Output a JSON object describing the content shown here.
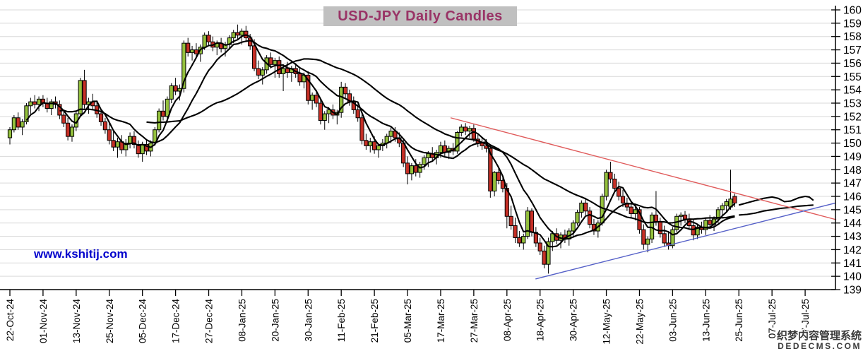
{
  "header": {
    "title": "USD-JPY Daily Candles"
  },
  "watermarks": {
    "site": "www.kshitij.com",
    "cms_line1": "织梦内容管理系统",
    "cms_line2": "DEDECMS.COM"
  },
  "colors": {
    "up_candle": "#94c13d",
    "down_candle": "#c62f26",
    "candle_border": "#000000",
    "ma_line": "#000000",
    "resistance_trendline": "#e05b5b",
    "support_trendline": "#5560c8",
    "gridline": "#d9d9d9",
    "axis": "#000000",
    "title_bg": "#c0c0c0",
    "title_text": "#993366",
    "site_watermark": "#0000cc"
  },
  "chart_data": {
    "type": "candlestick",
    "title": "USD-JPY Daily Candles",
    "grid": "horizontal",
    "ylim": [
      139,
      160
    ],
    "y_tick_step": 1,
    "y_tick_labels": [
      "160",
      "159",
      "158",
      "157",
      "156",
      "155",
      "154",
      "153",
      "152",
      "151",
      "150",
      "149",
      "148",
      "147",
      "146",
      "145",
      "144",
      "143",
      "142",
      "141",
      "140",
      "139"
    ],
    "x_tick_interval_candles": 8,
    "x_tick_labels": [
      "22-Oct-24",
      "01-Nov-24",
      "13-Nov-24",
      "25-Nov-24",
      "05-Dec-24",
      "17-Dec-24",
      "27-Dec-24",
      "08-Jan-25",
      "20-Jan-25",
      "30-Jan-25",
      "11-Feb-25",
      "21-Feb-25",
      "05-Mar-25",
      "17-Mar-25",
      "27-Mar-25",
      "08-Apr-25",
      "18-Apr-25",
      "30-Apr-25",
      "12-May-25",
      "22-May-25",
      "03-Jun-25",
      "13-Jun-25",
      "25-Jun-25",
      "07-Jul-25",
      "17-Jul-25"
    ],
    "candles_ohlc": [
      [
        150.4,
        151.2,
        149.9,
        151.0
      ],
      [
        151.0,
        152.1,
        150.8,
        151.9
      ],
      [
        151.9,
        152.3,
        151.0,
        151.2
      ],
      [
        151.2,
        151.8,
        150.6,
        151.6
      ],
      [
        151.6,
        153.0,
        151.4,
        152.8
      ],
      [
        152.8,
        153.4,
        152.2,
        153.1
      ],
      [
        153.1,
        153.6,
        152.6,
        152.9
      ],
      [
        152.9,
        153.5,
        152.4,
        153.3
      ],
      [
        153.3,
        153.6,
        152.7,
        153.0
      ],
      [
        153.0,
        153.4,
        152.3,
        152.6
      ],
      [
        152.6,
        153.3,
        152.1,
        153.1
      ],
      [
        153.1,
        153.5,
        152.6,
        152.9
      ],
      [
        152.9,
        153.2,
        151.8,
        152.1
      ],
      [
        152.1,
        152.4,
        151.2,
        151.5
      ],
      [
        151.5,
        151.9,
        150.2,
        150.5
      ],
      [
        150.5,
        151.4,
        150.1,
        151.2
      ],
      [
        151.2,
        152.4,
        150.9,
        152.2
      ],
      [
        152.2,
        154.9,
        152.0,
        154.7
      ],
      [
        154.7,
        155.5,
        152.6,
        152.9
      ],
      [
        152.9,
        153.4,
        152.2,
        153.1
      ],
      [
        153.1,
        153.7,
        152.5,
        152.8
      ],
      [
        152.8,
        153.2,
        151.9,
        152.2
      ],
      [
        152.2,
        152.6,
        151.3,
        151.6
      ],
      [
        151.6,
        151.9,
        150.7,
        151.0
      ],
      [
        151.0,
        151.5,
        149.9,
        150.2
      ],
      [
        150.2,
        150.9,
        149.4,
        149.7
      ],
      [
        149.7,
        150.4,
        148.9,
        150.1
      ],
      [
        150.1,
        150.6,
        149.2,
        149.5
      ],
      [
        149.5,
        150.3,
        149.0,
        150.0
      ],
      [
        150.0,
        150.8,
        149.6,
        150.5
      ],
      [
        150.5,
        150.9,
        149.6,
        149.9
      ],
      [
        149.9,
        150.2,
        148.9,
        149.2
      ],
      [
        149.2,
        150.1,
        148.6,
        149.9
      ],
      [
        149.9,
        150.3,
        149.1,
        149.4
      ],
      [
        149.4,
        150.2,
        149.0,
        150.0
      ],
      [
        150.0,
        151.2,
        149.8,
        151.0
      ],
      [
        151.0,
        152.6,
        150.8,
        152.4
      ],
      [
        152.4,
        153.2,
        151.7,
        152.0
      ],
      [
        152.0,
        153.5,
        151.8,
        153.3
      ],
      [
        153.3,
        154.5,
        153.0,
        154.3
      ],
      [
        154.3,
        154.9,
        153.6,
        153.9
      ],
      [
        153.9,
        154.4,
        153.2,
        154.1
      ],
      [
        154.1,
        157.7,
        153.8,
        157.5
      ],
      [
        157.5,
        157.9,
        156.5,
        156.8
      ],
      [
        156.8,
        157.3,
        156.2,
        157.0
      ],
      [
        157.0,
        157.5,
        156.4,
        156.7
      ],
      [
        156.7,
        157.4,
        156.1,
        157.2
      ],
      [
        157.2,
        158.3,
        157.0,
        158.1
      ],
      [
        158.1,
        158.4,
        157.3,
        157.6
      ],
      [
        157.6,
        158.0,
        156.9,
        157.2
      ],
      [
        157.2,
        157.7,
        156.6,
        157.5
      ],
      [
        157.5,
        157.9,
        156.8,
        157.1
      ],
      [
        157.1,
        157.6,
        156.5,
        157.4
      ],
      [
        157.4,
        158.1,
        157.0,
        157.9
      ],
      [
        157.9,
        158.5,
        157.5,
        158.3
      ],
      [
        158.3,
        158.9,
        157.8,
        158.1
      ],
      [
        158.1,
        158.6,
        157.4,
        158.4
      ],
      [
        158.4,
        158.8,
        157.6,
        157.9
      ],
      [
        157.9,
        158.2,
        157.0,
        157.3
      ],
      [
        157.3,
        157.8,
        155.4,
        155.6
      ],
      [
        155.6,
        156.2,
        154.8,
        155.1
      ],
      [
        155.1,
        155.7,
        154.4,
        155.5
      ],
      [
        155.5,
        156.6,
        155.2,
        156.4
      ],
      [
        156.4,
        156.8,
        155.6,
        155.9
      ],
      [
        155.9,
        156.4,
        154.9,
        156.2
      ],
      [
        156.2,
        156.5,
        154.9,
        155.2
      ],
      [
        155.2,
        155.9,
        153.9,
        155.6
      ],
      [
        155.6,
        156.1,
        154.9,
        155.3
      ],
      [
        155.3,
        155.8,
        154.6,
        155.6
      ],
      [
        155.6,
        156.0,
        154.9,
        155.2
      ],
      [
        155.2,
        155.6,
        154.3,
        154.6
      ],
      [
        154.6,
        155.3,
        154.1,
        155.1
      ],
      [
        155.1,
        155.4,
        152.9,
        153.2
      ],
      [
        153.2,
        153.8,
        152.5,
        153.6
      ],
      [
        153.6,
        154.0,
        152.7,
        153.0
      ],
      [
        153.0,
        153.3,
        151.4,
        151.7
      ],
      [
        151.7,
        152.4,
        151.0,
        152.2
      ],
      [
        152.2,
        152.7,
        151.5,
        152.5
      ],
      [
        152.5,
        152.9,
        151.8,
        152.1
      ],
      [
        152.1,
        152.5,
        151.4,
        152.3
      ],
      [
        152.3,
        154.6,
        151.9,
        154.2
      ],
      [
        154.2,
        154.5,
        153.4,
        153.7
      ],
      [
        153.7,
        154.0,
        152.8,
        153.1
      ],
      [
        153.1,
        153.5,
        152.2,
        152.5
      ],
      [
        152.5,
        152.9,
        151.6,
        151.9
      ],
      [
        151.9,
        152.2,
        149.9,
        150.2
      ],
      [
        150.2,
        150.7,
        149.5,
        149.8
      ],
      [
        149.8,
        150.4,
        149.3,
        150.1
      ],
      [
        150.1,
        150.5,
        149.2,
        149.5
      ],
      [
        149.5,
        150.0,
        148.9,
        149.8
      ],
      [
        149.8,
        150.3,
        149.4,
        150.0
      ],
      [
        150.0,
        150.7,
        149.6,
        150.5
      ],
      [
        150.5,
        151.2,
        150.0,
        150.9
      ],
      [
        150.9,
        151.2,
        150.1,
        150.4
      ],
      [
        150.4,
        150.8,
        149.7,
        150.0
      ],
      [
        150.0,
        150.3,
        148.2,
        148.5
      ],
      [
        148.5,
        149.0,
        146.9,
        147.7
      ],
      [
        147.7,
        148.5,
        147.2,
        148.3
      ],
      [
        148.3,
        148.8,
        147.5,
        147.8
      ],
      [
        147.8,
        148.6,
        147.4,
        148.4
      ],
      [
        148.4,
        149.1,
        148.0,
        148.9
      ],
      [
        148.9,
        149.4,
        148.2,
        149.2
      ],
      [
        149.2,
        149.7,
        148.6,
        148.9
      ],
      [
        148.9,
        149.5,
        148.4,
        149.3
      ],
      [
        149.3,
        150.1,
        148.9,
        149.8
      ],
      [
        149.8,
        150.2,
        149.0,
        149.3
      ],
      [
        149.3,
        149.8,
        148.8,
        149.6
      ],
      [
        149.6,
        150.0,
        149.1,
        149.4
      ],
      [
        149.4,
        150.9,
        149.2,
        150.8
      ],
      [
        150.8,
        151.4,
        150.5,
        151.2
      ],
      [
        151.2,
        151.5,
        150.6,
        150.9
      ],
      [
        150.9,
        151.3,
        150.4,
        151.1
      ],
      [
        151.1,
        151.4,
        150.1,
        150.3
      ],
      [
        150.3,
        150.7,
        149.7,
        150.0
      ],
      [
        150.0,
        150.4,
        149.5,
        149.8
      ],
      [
        149.8,
        150.3,
        149.3,
        149.6
      ],
      [
        149.6,
        149.9,
        145.9,
        146.4
      ],
      [
        146.4,
        147.9,
        146.0,
        147.8
      ],
      [
        147.8,
        148.2,
        146.9,
        147.2
      ],
      [
        147.2,
        147.6,
        146.3,
        146.6
      ],
      [
        146.6,
        147.0,
        143.6,
        144.5
      ],
      [
        144.5,
        145.3,
        143.5,
        143.8
      ],
      [
        143.8,
        144.4,
        142.5,
        142.9
      ],
      [
        142.9,
        143.4,
        142.2,
        142.5
      ],
      [
        142.5,
        143.2,
        142.0,
        143.0
      ],
      [
        143.0,
        145.2,
        142.8,
        144.9
      ],
      [
        144.9,
        145.1,
        143.0,
        143.3
      ],
      [
        143.3,
        143.7,
        142.2,
        142.5
      ],
      [
        142.5,
        142.9,
        141.6,
        141.9
      ],
      [
        141.9,
        142.3,
        140.6,
        140.9
      ],
      [
        140.9,
        142.9,
        140.2,
        142.6
      ],
      [
        142.6,
        143.4,
        141.9,
        143.2
      ],
      [
        143.2,
        143.6,
        142.4,
        142.7
      ],
      [
        142.7,
        143.3,
        142.1,
        143.1
      ],
      [
        143.1,
        143.5,
        142.5,
        142.8
      ],
      [
        142.8,
        143.6,
        142.3,
        143.4
      ],
      [
        143.4,
        144.2,
        143.0,
        144.0
      ],
      [
        144.0,
        145.0,
        143.8,
        144.8
      ],
      [
        144.8,
        145.7,
        144.4,
        145.5
      ],
      [
        145.5,
        145.9,
        144.6,
        144.9
      ],
      [
        144.9,
        145.2,
        143.6,
        143.9
      ],
      [
        143.9,
        144.3,
        143.1,
        143.4
      ],
      [
        143.4,
        144.2,
        142.9,
        144.0
      ],
      [
        144.0,
        146.2,
        143.8,
        146.0
      ],
      [
        146.0,
        148.0,
        145.7,
        147.8
      ],
      [
        147.8,
        148.6,
        147.0,
        147.3
      ],
      [
        147.3,
        147.7,
        146.3,
        146.6
      ],
      [
        146.6,
        147.1,
        145.7,
        146.0
      ],
      [
        146.0,
        146.5,
        145.2,
        145.5
      ],
      [
        145.5,
        145.9,
        144.9,
        145.2
      ],
      [
        145.2,
        145.6,
        144.4,
        144.7
      ],
      [
        144.7,
        145.3,
        144.2,
        145.0
      ],
      [
        145.0,
        145.2,
        143.2,
        143.5
      ],
      [
        143.5,
        143.9,
        142.0,
        142.4
      ],
      [
        142.4,
        143.0,
        141.8,
        142.8
      ],
      [
        142.8,
        144.8,
        142.5,
        144.6
      ],
      [
        144.6,
        146.4,
        143.8,
        144.1
      ],
      [
        144.1,
        144.4,
        142.9,
        143.2
      ],
      [
        143.2,
        143.8,
        142.2,
        142.5
      ],
      [
        142.5,
        143.4,
        142.0,
        142.3
      ],
      [
        142.3,
        143.7,
        142.1,
        143.5
      ],
      [
        143.5,
        144.7,
        143.3,
        144.5
      ],
      [
        144.5,
        144.8,
        143.8,
        144.6
      ],
      [
        144.6,
        144.9,
        144.0,
        144.3
      ],
      [
        144.3,
        144.7,
        143.5,
        143.8
      ],
      [
        143.8,
        144.3,
        142.7,
        143.1
      ],
      [
        143.1,
        143.9,
        142.8,
        143.7
      ],
      [
        143.7,
        144.1,
        143.2,
        143.5
      ],
      [
        143.5,
        144.4,
        143.1,
        144.2
      ],
      [
        144.2,
        144.6,
        143.6,
        143.9
      ],
      [
        143.9,
        144.5,
        143.4,
        144.3
      ],
      [
        144.3,
        145.2,
        144.0,
        145.0
      ],
      [
        145.0,
        145.5,
        144.6,
        145.3
      ],
      [
        145.3,
        145.8,
        144.9,
        145.6
      ],
      [
        145.2,
        148.0,
        145.0,
        145.8
      ],
      [
        146.0,
        146.2,
        145.2,
        145.5
      ]
    ],
    "moving_average_windows": [
      5,
      13,
      34
    ],
    "ma_projections": [
      [
        [
          176,
          145.35
        ],
        [
          179,
          145.6
        ],
        [
          182,
          145.85
        ],
        [
          184,
          145.95
        ],
        [
          185.5,
          145.85
        ],
        [
          187,
          145.6
        ],
        [
          188.5,
          145.65
        ],
        [
          190.5,
          145.9
        ],
        [
          192,
          146.0
        ],
        [
          193,
          145.95
        ],
        [
          194,
          145.7
        ]
      ],
      [
        [
          176,
          144.6
        ],
        [
          178,
          144.65
        ],
        [
          180,
          144.75
        ],
        [
          182,
          144.9
        ],
        [
          184,
          145.0
        ],
        [
          186,
          145.1
        ],
        [
          188,
          145.15
        ],
        [
          190,
          145.25
        ],
        [
          192,
          145.3
        ],
        [
          194,
          145.35
        ]
      ]
    ],
    "trendlines": [
      {
        "name": "resistance",
        "color_key": "resistance_trendline",
        "from": [
          106.4,
          151.9
        ],
        "to": [
          199.5,
          144.25
        ]
      },
      {
        "name": "support",
        "color_key": "support_trendline",
        "from": [
          126.9,
          139.8
        ],
        "to": [
          199.3,
          145.5
        ]
      }
    ]
  }
}
